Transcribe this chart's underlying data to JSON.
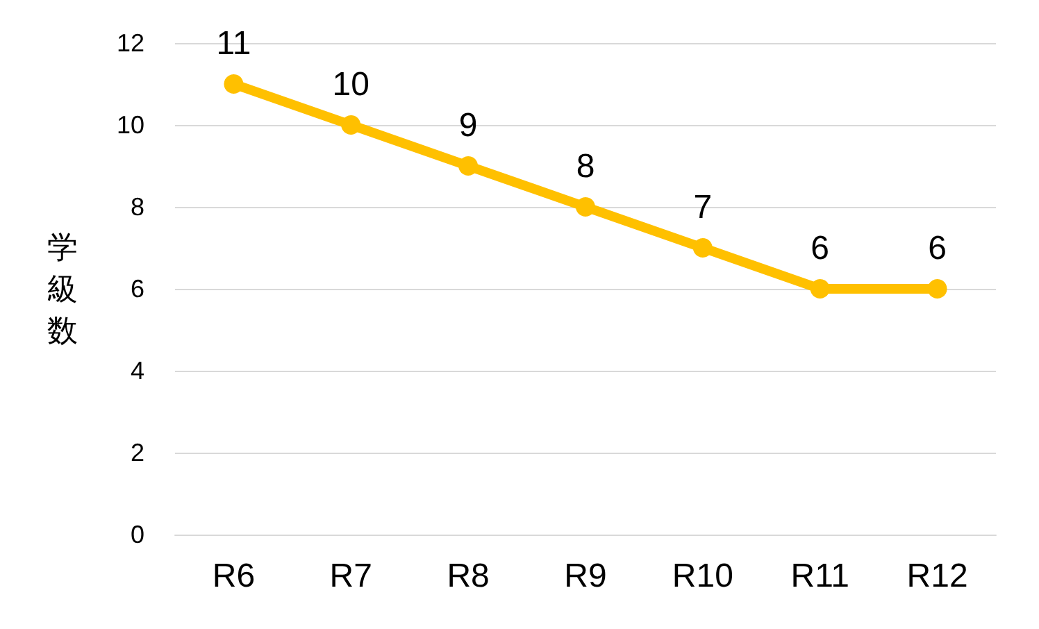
{
  "chart_data": {
    "type": "line",
    "ylabel": "学級数",
    "categories": [
      "R6",
      "R7",
      "R8",
      "R9",
      "R10",
      "R11",
      "R12"
    ],
    "series": [
      {
        "color": "#ffc000",
        "values": [
          11,
          10,
          9,
          8,
          7,
          6,
          6
        ]
      }
    ],
    "ylim": [
      0,
      12
    ],
    "yticks": [
      0,
      2,
      4,
      6,
      8,
      10,
      12
    ],
    "grid": true,
    "marker": "circle",
    "line_style": "solid",
    "data_labels": true
  }
}
